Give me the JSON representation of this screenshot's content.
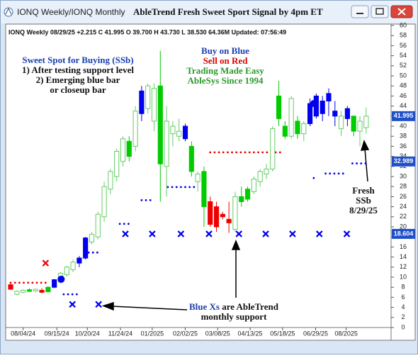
{
  "window": {
    "title": "IONQ Weekly/IONQ Monthly",
    "heading": "AbleTrend Fresh Sweet Sport Signal by 4pm ET"
  },
  "chart_data": {
    "type": "candlestick",
    "info": "IONQ  Weekly 08/29/25 +2.215 C 41.995 O 39.700 H 43.730 L 38.530 64.36M Updated: 07:56:49",
    "open": [
      8.5,
      6.6,
      7.0,
      7.2,
      7.3,
      7.4,
      7.1,
      8.0,
      9.0,
      10.5,
      11.5,
      12.8,
      13.8,
      17.0,
      18.0,
      22.0,
      27.5,
      30.0,
      33.0,
      37.0,
      36.0,
      42.5,
      43.5,
      41.0,
      48.0,
      32.0,
      38.5,
      38.0,
      40.0,
      36.0,
      29.0,
      31.0,
      25.0,
      24.0,
      22.5,
      21.5,
      19.5,
      26.0,
      25.5,
      27.0,
      29.0,
      30.5,
      31.5,
      46.0,
      40.0,
      38.0,
      41.0,
      38.5,
      40.5,
      42.0,
      42.5,
      45.0,
      42.0,
      42.0,
      41.5,
      42.0,
      39.0,
      39.7
    ],
    "high": [
      8.9,
      7.4,
      7.6,
      7.8,
      7.7,
      7.8,
      8.2,
      9.6,
      11.0,
      12.3,
      13.5,
      14.2,
      18.0,
      19.0,
      23.0,
      29.0,
      31.5,
      35.5,
      38.0,
      38.0,
      44.0,
      48.0,
      48.5,
      48.5,
      55.0,
      44.0,
      41.0,
      41.5,
      40.5,
      37.0,
      31.0,
      32.0,
      26.0,
      25.0,
      23.0,
      25.0,
      27.0,
      28.0,
      28.0,
      30.0,
      31.5,
      32.5,
      40.0,
      49.0,
      41.0,
      46.0,
      42.0,
      41.0,
      45.5,
      46.5,
      46.0,
      47.5,
      45.0,
      43.0,
      44.0,
      42.0,
      42.0,
      43.73
    ],
    "low": [
      7.5,
      6.4,
      6.8,
      7.0,
      7.0,
      6.8,
      7.0,
      7.8,
      8.7,
      10.1,
      11.0,
      12.0,
      13.5,
      16.5,
      17.5,
      21.0,
      26.5,
      29.0,
      32.0,
      33.0,
      35.0,
      41.0,
      42.5,
      39.0,
      25.0,
      26.0,
      36.0,
      37.0,
      37.0,
      30.0,
      27.0,
      20.0,
      20.0,
      19.0,
      21.5,
      18.8,
      19.0,
      24.0,
      25.0,
      26.5,
      28.0,
      29.5,
      31.0,
      40.0,
      37.5,
      37.5,
      37.5,
      37.0,
      40.0,
      41.5,
      41.0,
      42.0,
      40.0,
      38.0,
      40.0,
      38.0,
      36.0,
      38.53
    ],
    "close": [
      7.6,
      7.2,
      7.4,
      7.5,
      7.6,
      7.0,
      8.0,
      9.5,
      10.8,
      12.0,
      13.0,
      13.8,
      17.8,
      18.5,
      22.5,
      28.0,
      31.0,
      35.0,
      37.5,
      34.0,
      43.0,
      47.0,
      48.0,
      47.5,
      32.5,
      41.0,
      40.0,
      39.0,
      37.5,
      31.0,
      30.5,
      24.0,
      20.5,
      20.0,
      22.0,
      20.8,
      26.0,
      25.0,
      27.5,
      29.5,
      31.0,
      31.5,
      39.5,
      41.5,
      38.0,
      45.5,
      38.5,
      40.5,
      44.5,
      46.0,
      45.0,
      46.5,
      43.0,
      39.5,
      43.5,
      39.0,
      41.0,
      41.995
    ],
    "colors": [
      "#ee0000",
      "#66cc66",
      "#66cc66",
      "#00cc00",
      "#66cc66",
      "#ee0000",
      "#00cc00",
      "#0000ee",
      "#66cc66",
      "#66cc66",
      "#66cc66",
      "#0000ee",
      "#0000ee",
      "#66cc66",
      "#66cc66",
      "#66cc66",
      "#66cc66",
      "#66cc66",
      "#66cc66",
      "#00cc00",
      "#66cc66",
      "#0000ee",
      "#66cc66",
      "#66cc66",
      "#00cc00",
      "#66cc66",
      "#66cc66",
      "#66cc66",
      "#0000ee",
      "#00cc00",
      "#66cc66",
      "#00cc00",
      "#ee0000",
      "#ee0000",
      "#ee0000",
      "#ee0000",
      "#66cc66",
      "#00cc00",
      "#00cc00",
      "#66cc66",
      "#66cc66",
      "#66cc66",
      "#66cc66",
      "#00cc00",
      "#00cc00",
      "#66cc66",
      "#00cc00",
      "#66cc66",
      "#0000ee",
      "#0000ee",
      "#0000ee",
      "#0000ee",
      "#0000ee",
      "#66cc66",
      "#0000ee",
      "#00cc00",
      "#66cc66",
      "#66cc66"
    ],
    "hollow": [
      false,
      true,
      true,
      false,
      true,
      false,
      false,
      false,
      true,
      true,
      true,
      false,
      false,
      true,
      true,
      true,
      true,
      true,
      true,
      false,
      true,
      false,
      true,
      true,
      false,
      true,
      true,
      true,
      false,
      false,
      true,
      false,
      false,
      false,
      false,
      false,
      true,
      false,
      false,
      true,
      true,
      true,
      true,
      false,
      false,
      true,
      false,
      true,
      false,
      false,
      false,
      false,
      false,
      true,
      false,
      false,
      true,
      true
    ],
    "xlim": [
      -0.8,
      61
    ],
    "xticks": [
      {
        "value": 2.0,
        "label": "08/04/24"
      },
      {
        "value": 7.4,
        "label": "09/15/24"
      },
      {
        "value": 12.3,
        "label": "10/20/24"
      },
      {
        "value": 17.6,
        "label": "11/24/24"
      },
      {
        "value": 22.7,
        "label": "01/2025"
      },
      {
        "value": 28.0,
        "label": "02/02/25"
      },
      {
        "value": 33.2,
        "label": "03/08/25"
      },
      {
        "value": 38.4,
        "label": "04/13/25"
      },
      {
        "value": 43.6,
        "label": "05/18/25"
      },
      {
        "value": 48.9,
        "label": "06/29/25"
      },
      {
        "value": 53.8,
        "label": "08/2025"
      }
    ],
    "ylim": [
      0,
      60
    ],
    "yticks": [
      0,
      2,
      4,
      6,
      8,
      10,
      12,
      14,
      16,
      18,
      20,
      22,
      24,
      26,
      28,
      30,
      32,
      34,
      36,
      38,
      40,
      42,
      44,
      46,
      48,
      50,
      52,
      54,
      56,
      58,
      60
    ],
    "price_labels": [
      41.995,
      32.989,
      18.604
    ],
    "price_label_color": "#1f4fc8",
    "stops": [
      {
        "color": "#ee0000",
        "from": 0,
        "to": 6,
        "value": 8.9
      },
      {
        "color": "#0000ee",
        "from": 8.5,
        "to": 11,
        "value": 6.6
      },
      {
        "color": "#0000ee",
        "from": 12.5,
        "to": 14,
        "value": 14.9
      },
      {
        "color": "#0000ee",
        "from": 17.5,
        "to": 19.5,
        "value": 20.6
      },
      {
        "color": "#0000ee",
        "from": 21,
        "to": 22.5,
        "value": 25.3
      },
      {
        "color": "#0000ee",
        "from": 25.2,
        "to": 29.5,
        "value": 27.9
      },
      {
        "color": "#ee0000",
        "from": 32,
        "to": 43.5,
        "value": 34.8
      },
      {
        "color": "#0000ee",
        "from": 48.6,
        "to": 48.6,
        "value": 29.7
      },
      {
        "color": "#0000ee",
        "from": 50.5,
        "to": 53.5,
        "value": 30.6
      },
      {
        "color": "#0000ee",
        "from": 54.8,
        "to": 57,
        "value": 32.6
      }
    ],
    "markers": {
      "x": [
        5.6,
        9.9,
        14.1,
        18.4,
        22.7,
        27.3,
        31.8,
        36.6,
        40.9,
        45.2,
        49.5,
        53.9
      ],
      "values": [
        12.8,
        4.6,
        4.6,
        18.6,
        18.6,
        18.6,
        18.6,
        18.6,
        18.6,
        18.6,
        18.6,
        18.6
      ],
      "colors": [
        "#ee0000",
        "#0000ee",
        "#0000ee",
        "#0000ee",
        "#0000ee",
        "#0000ee",
        "#0000ee",
        "#0000ee",
        "#0000ee",
        "#0000ee",
        "#0000ee",
        "#0000ee"
      ]
    },
    "signals": {
      "x": [
        8.1,
        48.6
      ],
      "values": [
        9.6,
        44.5
      ],
      "color": "#0000ee"
    },
    "annotations": {
      "sweet_spot": [
        "Sweet Spot for Buying (SSb)",
        "1) After testing support level",
        "2) Emerging blue bar",
        "or closeup bar"
      ],
      "buy": "Buy on Blue",
      "sell": "Sell on Red",
      "easy": "Trading Made Easy",
      "since": "AbleSys Since 1994",
      "fresh": [
        "Fresh",
        "SSb",
        "8/29/25"
      ],
      "support": [
        "Blue Xs",
        "are AbleTrend",
        "monthly support"
      ]
    }
  }
}
